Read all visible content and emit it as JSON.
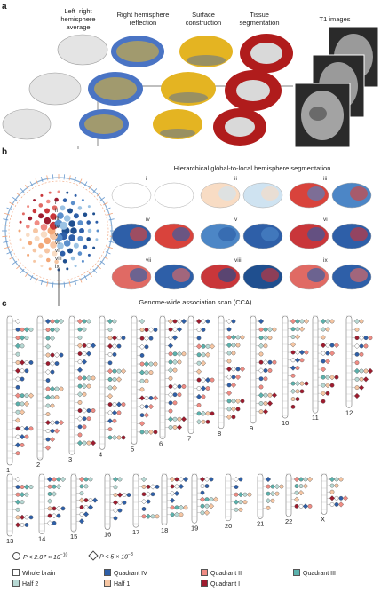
{
  "panel_a": {
    "letter": "a",
    "col1": "Left–right\nhemisphere\naverage",
    "col2": "Right hemisphere\nreflection",
    "col3": "Surface\nconstruction",
    "col4": "Tissue\nsegmentation",
    "col5": "T1 images"
  },
  "panel_b": {
    "letter": "b",
    "title": "Hierarchical global-to-local hemisphere segmentation",
    "levels": [
      "i",
      "ii",
      "iii",
      "iv",
      "v",
      "vi",
      "vii",
      "viii",
      "ix"
    ]
  },
  "panel_c": {
    "letter": "c",
    "title": "Genome-wide association scan (CCA)",
    "chromosomes_row1": [
      "1",
      "2",
      "3",
      "4",
      "5",
      "6",
      "7",
      "8",
      "9",
      "10",
      "11",
      "12"
    ],
    "chromosomes_row2": [
      "13",
      "14",
      "15",
      "16",
      "17",
      "18",
      "19",
      "20",
      "21",
      "22",
      "X"
    ]
  },
  "legend": {
    "sig1": "P < 2.07 × 10",
    "sig1_exp": "−10",
    "sig2": "P < 5 × 10",
    "sig2_exp": "−8",
    "items": [
      {
        "label": "Whole brain",
        "color": "#ffffff"
      },
      {
        "label": "Quadrant IV",
        "color": "#2e5fa8"
      },
      {
        "label": "Quadrant II",
        "color": "#f08c84"
      },
      {
        "label": "Quadrant III",
        "color": "#5bb2ad"
      },
      {
        "label": "Half 2",
        "color": "#b7d9d4"
      },
      {
        "label": "Half 1",
        "color": "#f6c6a3"
      },
      {
        "label": "Quadrant I",
        "color": "#9e1b2e"
      }
    ]
  }
}
